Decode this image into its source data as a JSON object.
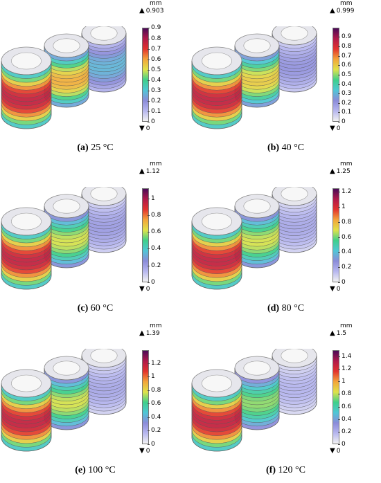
{
  "panels": [
    {
      "label": "(a)",
      "text": " 25 °C",
      "unit": "mm",
      "max": "0.903",
      "min": "0",
      "ticks": [
        "0",
        "0.1",
        "0.2",
        "0.3",
        "0.4",
        "0.5",
        "0.6",
        "0.7",
        "0.8",
        "0.9"
      ],
      "tick_values": [
        0,
        0.1,
        0.2,
        0.3,
        0.4,
        0.5,
        0.6,
        0.7,
        0.8,
        0.9
      ],
      "max_value": 0.903,
      "coil_levels": [
        0.85,
        0.65,
        0.3
      ]
    },
    {
      "label": "(b)",
      "text": " 40 °C",
      "unit": "mm",
      "max": "0.999",
      "min": "0",
      "ticks": [
        "0",
        "0.1",
        "0.2",
        "0.3",
        "0.4",
        "0.5",
        "0.6",
        "0.7",
        "0.8",
        "0.9"
      ],
      "tick_values": [
        0,
        0.1,
        0.2,
        0.3,
        0.4,
        0.5,
        0.6,
        0.7,
        0.8,
        0.9
      ],
      "max_value": 0.999,
      "coil_levels": [
        0.85,
        0.6,
        0.2
      ]
    },
    {
      "label": "(c)",
      "text": " 60 °C",
      "unit": "mm",
      "max": "1.12",
      "min": "0",
      "ticks": [
        "0",
        "0.2",
        "0.4",
        "0.6",
        "0.8",
        "1"
      ],
      "tick_values": [
        0,
        0.2,
        0.4,
        0.6,
        0.8,
        1.0
      ],
      "max_value": 1.12,
      "coil_levels": [
        0.85,
        0.55,
        0.18
      ]
    },
    {
      "label": "(d)",
      "text": " 80 °C",
      "unit": "mm",
      "max": "1.25",
      "min": "0",
      "ticks": [
        "0",
        "0.2",
        "0.4",
        "0.6",
        "0.8",
        "1",
        "1.2"
      ],
      "tick_values": [
        0,
        0.2,
        0.4,
        0.6,
        0.8,
        1.0,
        1.2
      ],
      "max_value": 1.25,
      "coil_levels": [
        0.85,
        0.55,
        0.15
      ]
    },
    {
      "label": "(e)",
      "text": " 100 °C",
      "unit": "mm",
      "max": "1.39",
      "min": "0",
      "ticks": [
        "0",
        "0.2",
        "0.4",
        "0.6",
        "0.8",
        "1",
        "1.2"
      ],
      "tick_values": [
        0,
        0.2,
        0.4,
        0.6,
        0.8,
        1.0,
        1.2
      ],
      "max_value": 1.39,
      "coil_levels": [
        0.85,
        0.55,
        0.15
      ]
    },
    {
      "label": "(f)",
      "text": " 120 °C",
      "unit": "mm",
      "max": "1.5",
      "min": "0",
      "ticks": [
        "0",
        "0.2",
        "0.4",
        "0.6",
        "0.8",
        "1",
        "1.2",
        "1.4"
      ],
      "tick_values": [
        0,
        0.2,
        0.4,
        0.6,
        0.8,
        1.0,
        1.2,
        1.4
      ],
      "max_value": 1.5,
      "coil_levels": [
        0.85,
        0.5,
        0.12
      ]
    }
  ],
  "colors": {
    "colormap": [
      "#f2f2f2",
      "#b7b7ef",
      "#8b8bd9",
      "#4fc7d6",
      "#3fd08a",
      "#dfe24a",
      "#f3a53a",
      "#e2332d",
      "#b0194a",
      "#4b0a57"
    ],
    "wire": "#8a8a8a"
  }
}
